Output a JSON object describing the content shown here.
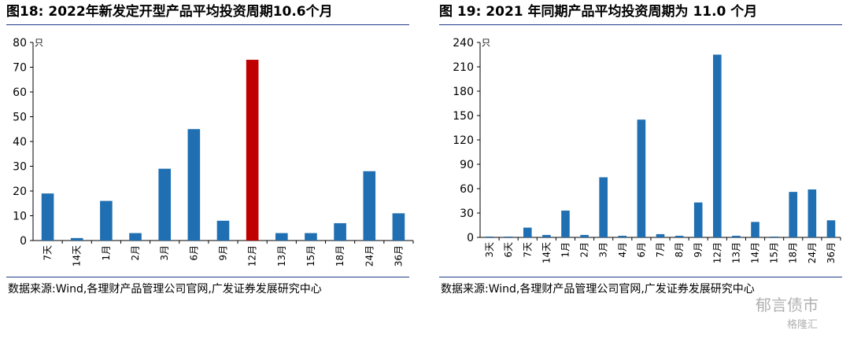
{
  "chart_data": [
    {
      "type": "bar",
      "title": "图18:  2022年新发定开型产品平均投资周期10.6个月",
      "unit": "只",
      "categories": [
        "7天",
        "14天",
        "1月",
        "2月",
        "3月",
        "6月",
        "9月",
        "12月",
        "13月",
        "15月",
        "18月",
        "24月",
        "36月"
      ],
      "values": [
        19,
        1,
        16,
        3,
        29,
        45,
        8,
        73,
        3,
        3,
        7,
        28,
        11
      ],
      "highlight_category": "12月",
      "ylim": [
        0,
        80
      ],
      "yticks": [
        0,
        10,
        20,
        30,
        40,
        50,
        60,
        70,
        80
      ],
      "grid": false,
      "source": "数据来源:Wind,各理财产品管理公司官网,广发证券发展研究中心",
      "colors": {
        "bar": "#1f6fb2",
        "highlight": "#c00000"
      }
    },
    {
      "type": "bar",
      "title": "图 19:  2021 年同期产品平均投资周期为 11.0 个月",
      "unit": "只",
      "categories": [
        "3天",
        "6天",
        "7天",
        "14天",
        "1月",
        "2月",
        "3月",
        "4月",
        "6月",
        "7月",
        "8月",
        "9月",
        "12月",
        "13月",
        "14月",
        "15月",
        "18月",
        "24月",
        "36月"
      ],
      "values": [
        1,
        1,
        12,
        3,
        33,
        3,
        74,
        2,
        145,
        4,
        2,
        43,
        225,
        2,
        19,
        1,
        56,
        59,
        21
      ],
      "ylim": [
        0,
        240
      ],
      "yticks": [
        0,
        30,
        60,
        90,
        120,
        150,
        180,
        210,
        240
      ],
      "grid": false,
      "source": "数据来源:Wind,各理财产品管理公司官网,广发证券发展研究中心",
      "colors": {
        "bar": "#1f6fb2"
      }
    }
  ],
  "watermark": {
    "line1": "郁言债市",
    "line2": "格隆汇"
  }
}
